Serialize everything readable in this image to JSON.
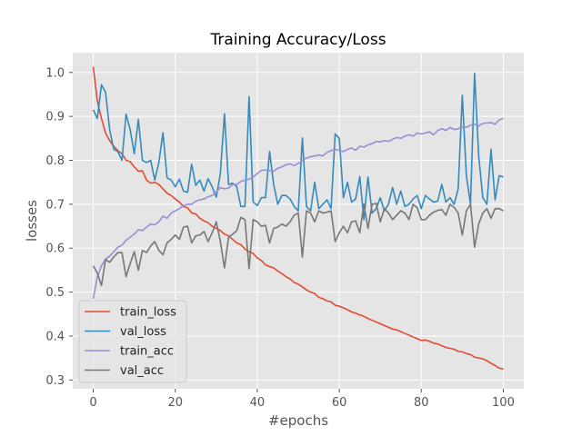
{
  "chart_data": {
    "type": "line",
    "title": "Training Accuracy/Loss",
    "xlabel": "#epochs",
    "ylabel": "losses",
    "xlim": [
      -5,
      105
    ],
    "ylim": [
      0.28,
      1.045
    ],
    "xticks": [
      0,
      20,
      40,
      60,
      80,
      100
    ],
    "yticks": [
      0.3,
      0.4,
      0.5,
      0.6,
      0.7,
      0.8,
      0.9,
      1.0
    ],
    "xtick_labels": [
      "0",
      "20",
      "40",
      "60",
      "80",
      "100"
    ],
    "ytick_labels": [
      "0.3",
      "0.4",
      "0.5",
      "0.6",
      "0.7",
      "0.8",
      "0.9",
      "1.0"
    ],
    "grid": true,
    "legend_position": "lower-left",
    "series": [
      {
        "name": "train_loss",
        "color": "#e24a33",
        "values": [
          1.013,
          0.935,
          0.895,
          0.862,
          0.845,
          0.832,
          0.822,
          0.815,
          0.8,
          0.797,
          0.785,
          0.775,
          0.776,
          0.755,
          0.748,
          0.75,
          0.745,
          0.735,
          0.725,
          0.72,
          0.712,
          0.705,
          0.695,
          0.692,
          0.68,
          0.678,
          0.668,
          0.662,
          0.658,
          0.65,
          0.645,
          0.64,
          0.632,
          0.628,
          0.62,
          0.612,
          0.608,
          0.598,
          0.592,
          0.588,
          0.578,
          0.572,
          0.562,
          0.558,
          0.555,
          0.548,
          0.542,
          0.535,
          0.53,
          0.522,
          0.518,
          0.512,
          0.505,
          0.5,
          0.497,
          0.488,
          0.485,
          0.48,
          0.478,
          0.47,
          0.468,
          0.464,
          0.46,
          0.455,
          0.452,
          0.448,
          0.445,
          0.44,
          0.436,
          0.432,
          0.428,
          0.424,
          0.42,
          0.416,
          0.414,
          0.41,
          0.406,
          0.402,
          0.398,
          0.394,
          0.39,
          0.391,
          0.388,
          0.384,
          0.382,
          0.378,
          0.374,
          0.372,
          0.37,
          0.365,
          0.364,
          0.36,
          0.358,
          0.352,
          0.35,
          0.348,
          0.344,
          0.338,
          0.333,
          0.327,
          0.325
        ]
      },
      {
        "name": "val_loss",
        "color": "#348abd",
        "values": [
          0.915,
          0.895,
          0.972,
          0.955,
          0.87,
          0.825,
          0.82,
          0.8,
          0.905,
          0.87,
          0.815,
          0.893,
          0.8,
          0.795,
          0.8,
          0.755,
          0.795,
          0.863,
          0.76,
          0.755,
          0.74,
          0.757,
          0.73,
          0.727,
          0.791,
          0.743,
          0.755,
          0.73,
          0.758,
          0.74,
          0.716,
          0.77,
          0.906,
          0.745,
          0.748,
          0.74,
          0.695,
          0.695,
          0.945,
          0.705,
          0.697,
          0.715,
          0.715,
          0.82,
          0.745,
          0.7,
          0.72,
          0.72,
          0.712,
          0.695,
          0.685,
          0.851,
          0.695,
          0.685,
          0.75,
          0.69,
          0.7,
          0.71,
          0.69,
          0.86,
          0.85,
          0.715,
          0.75,
          0.705,
          0.712,
          0.763,
          0.665,
          0.762,
          0.68,
          0.69,
          0.715,
          0.685,
          0.7,
          0.738,
          0.7,
          0.73,
          0.695,
          0.7,
          0.712,
          0.72,
          0.69,
          0.72,
          0.712,
          0.705,
          0.707,
          0.745,
          0.705,
          0.715,
          0.7,
          0.735,
          0.948,
          0.765,
          0.7,
          0.998,
          0.81,
          0.715,
          0.7,
          0.825,
          0.71,
          0.765,
          0.762
        ]
      },
      {
        "name": "train_acc",
        "color": "#988ed5",
        "values": [
          0.485,
          0.535,
          0.56,
          0.575,
          0.582,
          0.592,
          0.602,
          0.607,
          0.618,
          0.625,
          0.632,
          0.642,
          0.64,
          0.648,
          0.655,
          0.653,
          0.66,
          0.673,
          0.668,
          0.68,
          0.685,
          0.69,
          0.697,
          0.7,
          0.7,
          0.707,
          0.71,
          0.712,
          0.717,
          0.72,
          0.728,
          0.738,
          0.735,
          0.737,
          0.745,
          0.745,
          0.752,
          0.755,
          0.757,
          0.762,
          0.77,
          0.777,
          0.778,
          0.777,
          0.775,
          0.782,
          0.785,
          0.79,
          0.792,
          0.788,
          0.793,
          0.8,
          0.805,
          0.808,
          0.81,
          0.812,
          0.81,
          0.818,
          0.822,
          0.825,
          0.823,
          0.82,
          0.825,
          0.828,
          0.823,
          0.832,
          0.83,
          0.835,
          0.838,
          0.843,
          0.842,
          0.845,
          0.843,
          0.848,
          0.852,
          0.85,
          0.855,
          0.858,
          0.855,
          0.862,
          0.86,
          0.862,
          0.865,
          0.858,
          0.868,
          0.872,
          0.868,
          0.875,
          0.87,
          0.872,
          0.876,
          0.875,
          0.88,
          0.882,
          0.878,
          0.884,
          0.885,
          0.886,
          0.882,
          0.892,
          0.895
        ]
      },
      {
        "name": "val_acc",
        "color": "#777777",
        "values": [
          0.56,
          0.543,
          0.515,
          0.574,
          0.568,
          0.58,
          0.59,
          0.59,
          0.535,
          0.565,
          0.592,
          0.55,
          0.595,
          0.59,
          0.605,
          0.615,
          0.595,
          0.585,
          0.612,
          0.62,
          0.63,
          0.62,
          0.648,
          0.65,
          0.612,
          0.628,
          0.63,
          0.638,
          0.615,
          0.635,
          0.66,
          0.615,
          0.555,
          0.625,
          0.632,
          0.64,
          0.67,
          0.665,
          0.553,
          0.665,
          0.66,
          0.65,
          0.652,
          0.612,
          0.645,
          0.648,
          0.655,
          0.65,
          0.66,
          0.675,
          0.68,
          0.58,
          0.685,
          0.68,
          0.66,
          0.685,
          0.68,
          0.682,
          0.685,
          0.615,
          0.635,
          0.65,
          0.635,
          0.66,
          0.662,
          0.635,
          0.7,
          0.645,
          0.7,
          0.702,
          0.66,
          0.69,
          0.68,
          0.665,
          0.675,
          0.685,
          0.68,
          0.665,
          0.7,
          0.692,
          0.665,
          0.665,
          0.675,
          0.682,
          0.686,
          0.688,
          0.675,
          0.7,
          0.693,
          0.68,
          0.63,
          0.685,
          0.7,
          0.602,
          0.655,
          0.68,
          0.69,
          0.668,
          0.69,
          0.69,
          0.685
        ]
      }
    ]
  }
}
